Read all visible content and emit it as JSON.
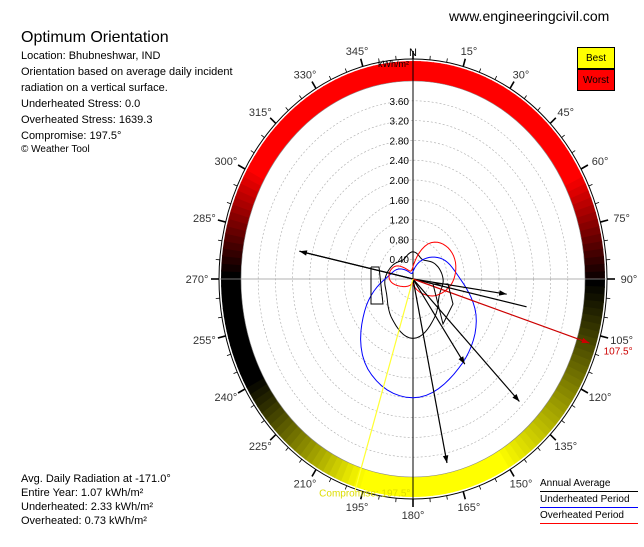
{
  "site": "www.engineeringcivil.com",
  "info": {
    "title": "Optimum Orientation",
    "location": "Location: Bhubneshwar, IND",
    "desc1": "Orientation based on average daily incident",
    "desc2": "radiation on a vertical surface.",
    "underheated_stress": "Underheated Stress: 0.0",
    "overheated_stress": "Overheated Stress: 1639.3",
    "compromise": "Compromise: 197.5°",
    "copyright": "© Weather Tool"
  },
  "stats": {
    "avg": "Avg. Daily Radiation at -171.0°",
    "entire": "Entire Year: 1.07 kWh/m²",
    "under": "Underheated: 2.33 kWh/m²",
    "over": "Overheated: 0.73 kWh/m²"
  },
  "legend": {
    "best": "Best",
    "worst": "Worst",
    "annual": "Annual Average",
    "underheated": "Underheated Period",
    "overheated": "Overheated Period"
  },
  "colors": {
    "annual": "#000000",
    "underheated": "#0000ff",
    "overheated": "#ff0000",
    "best": "#ffff00",
    "worst": "#ff0000"
  },
  "chart_data": {
    "type": "polar",
    "north_label": "N",
    "unit_label": "kWh/m²",
    "radial_ticks": [
      0.4,
      0.8,
      1.2,
      1.6,
      2.0,
      2.4,
      2.8,
      3.2,
      3.6
    ],
    "radial_tick_labels": [
      "0.40",
      "0.80",
      "1.20",
      "1.60",
      "2.00",
      "2.40",
      "2.80",
      "3.20",
      "3.60"
    ],
    "rmax": 4.0,
    "angle_labels": [
      "15°",
      "30°",
      "45°",
      "60°",
      "75°",
      "90°",
      "105°",
      "120°",
      "135°",
      "150°",
      "165°",
      "180°",
      "195°",
      "210°",
      "225°",
      "240°",
      "255°",
      "270°",
      "285°",
      "300°",
      "315°",
      "330°",
      "345°"
    ],
    "angle_values": [
      15,
      30,
      45,
      60,
      75,
      90,
      105,
      120,
      135,
      150,
      165,
      180,
      195,
      210,
      225,
      240,
      255,
      270,
      285,
      300,
      315,
      330,
      345
    ],
    "ring_color_by_azimuth": [
      {
        "az": 0,
        "color": "#ff0000"
      },
      {
        "az": 60,
        "color": "#ff0000"
      },
      {
        "az": 90,
        "color": "#000000"
      },
      {
        "az": 150,
        "color": "#ffff00"
      },
      {
        "az": 195,
        "color": "#ffff00"
      },
      {
        "az": 240,
        "color": "#000000"
      },
      {
        "az": 270,
        "color": "#000000"
      },
      {
        "az": 300,
        "color": "#ff0000"
      },
      {
        "az": 360,
        "color": "#ff0000"
      }
    ],
    "best_orientation": {
      "angle": 107.5,
      "label": "107.5°"
    },
    "compromise": {
      "angle": 197.5,
      "label": "Compromise: 197.5°"
    },
    "annual_line": {
      "angle": 282,
      "end_angle": 102
    },
    "series": [
      {
        "name": "Annual Average",
        "points": [
          [
            0,
            0.55
          ],
          [
            30,
            0.45
          ],
          [
            60,
            0.6
          ],
          [
            90,
            0.7
          ],
          [
            120,
            0.7
          ],
          [
            150,
            0.95
          ],
          [
            180,
            1.2
          ],
          [
            210,
            0.95
          ],
          [
            240,
            0.7
          ],
          [
            270,
            0.65
          ],
          [
            300,
            0.55
          ],
          [
            330,
            0.45
          ]
        ]
      },
      {
        "name": "Underheated Period",
        "points": [
          [
            0,
            0.15
          ],
          [
            30,
            0.45
          ],
          [
            60,
            0.8
          ],
          [
            90,
            1.1
          ],
          [
            120,
            1.7
          ],
          [
            150,
            2.1
          ],
          [
            180,
            2.4
          ],
          [
            210,
            2.1
          ],
          [
            240,
            1.3
          ],
          [
            270,
            0.65
          ],
          [
            300,
            0.4
          ],
          [
            330,
            0.15
          ]
        ]
      },
      {
        "name": "Overheated Period",
        "points": [
          [
            0,
            0.25
          ],
          [
            30,
            0.85
          ],
          [
            60,
            1.05
          ],
          [
            90,
            0.95
          ],
          [
            120,
            0.65
          ],
          [
            150,
            0.3
          ],
          [
            180,
            0.1
          ],
          [
            210,
            0.15
          ],
          [
            240,
            0.3
          ],
          [
            270,
            0.55
          ],
          [
            300,
            0.5
          ],
          [
            330,
            0.2
          ]
        ]
      }
    ],
    "spokes": [
      {
        "angle": 282,
        "r": 2.7
      },
      {
        "angle": 98,
        "r": 2.2
      },
      {
        "angle": 135,
        "r": 3.5
      },
      {
        "angle": 168,
        "r": 3.8
      },
      {
        "angle": 145,
        "r": 2.1
      },
      {
        "angle": 107.5,
        "r": 4.3
      }
    ]
  }
}
